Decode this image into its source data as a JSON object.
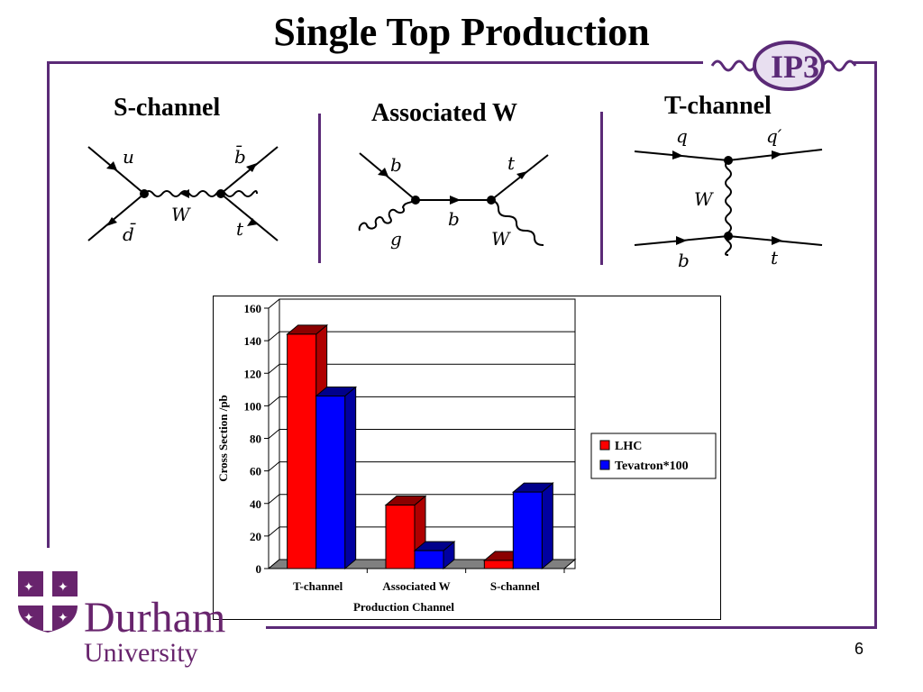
{
  "slide": {
    "title": "Single Top Production",
    "page_number": "6",
    "logo_text": "IP3",
    "university_name": "Durham",
    "university_sub": "University"
  },
  "channels": [
    {
      "label": "S-channel"
    },
    {
      "label": "Associated W"
    },
    {
      "label": "T-channel"
    }
  ],
  "diagrams": {
    "s_channel": {
      "u": "u",
      "dbar": "d̄",
      "bbar": "b̄",
      "t": "t",
      "w": "W"
    },
    "assoc_w": {
      "b_in": "b",
      "g": "g",
      "b_mid": "b",
      "t": "t",
      "w": "W"
    },
    "t_channel": {
      "q": "q",
      "qprime": "q′",
      "w": "W",
      "b": "b",
      "t": "t"
    }
  },
  "colors": {
    "frame": "#5b2a77",
    "lhc": "#ff0000",
    "tevatron": "#0000ff",
    "durham_purple": "#68246d"
  },
  "chart_data": {
    "type": "bar",
    "categories": [
      "T-channel",
      "Associated W",
      "S-channel"
    ],
    "series": [
      {
        "name": "LHC",
        "values": [
          144,
          39,
          5
        ]
      },
      {
        "name": "Tevatron*100",
        "values": [
          106,
          11,
          47
        ]
      }
    ],
    "xlabel": "Production Channel",
    "ylabel": "Cross Section /pb",
    "ylim": [
      0,
      160
    ],
    "yticks": [
      0,
      20,
      40,
      60,
      80,
      100,
      120,
      140,
      160
    ],
    "grid": true,
    "legend": "right",
    "style": "3d"
  }
}
